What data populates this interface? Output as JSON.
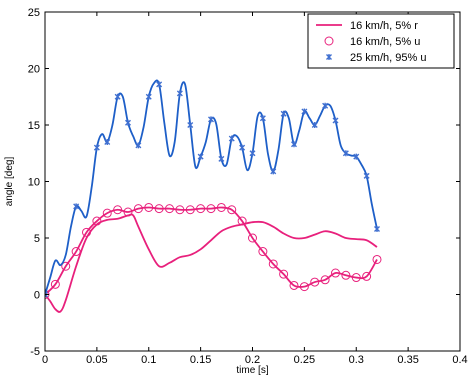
{
  "chart_data": {
    "type": "line",
    "xlabel": "time [s]",
    "ylabel": "angle [deg]",
    "xlim": [
      0,
      0.4
    ],
    "ylim": [
      -5,
      25
    ],
    "xticks": [
      0,
      0.05,
      0.1,
      0.15,
      0.2,
      0.25,
      0.3,
      0.35,
      0.4
    ],
    "xtick_labels": [
      "0",
      "0.05",
      "0.1",
      "0.15",
      "0.2",
      "0.25",
      "0.3",
      "0.35",
      "0.4"
    ],
    "yticks": [
      -5,
      0,
      5,
      10,
      15,
      20,
      25
    ],
    "ytick_labels": [
      "-5",
      "0",
      "5",
      "10",
      "15",
      "20",
      "25"
    ],
    "grid": false,
    "legend_position": "top-right",
    "series": [
      {
        "name": "16 km/h, 5% r",
        "color": "#e8207c",
        "marker": "none",
        "x": [
          0,
          0.005,
          0.01,
          0.015,
          0.02,
          0.03,
          0.04,
          0.05,
          0.06,
          0.07,
          0.08,
          0.085,
          0.09,
          0.1,
          0.11,
          0.12,
          0.13,
          0.14,
          0.15,
          0.16,
          0.17,
          0.18,
          0.19,
          0.2,
          0.21,
          0.22,
          0.23,
          0.24,
          0.25,
          0.26,
          0.27,
          0.28,
          0.29,
          0.3,
          0.31,
          0.32
        ],
        "y": [
          0,
          -0.6,
          -1.3,
          -1.5,
          -0.5,
          2.5,
          5.0,
          6.2,
          6.6,
          6.7,
          7.0,
          7.0,
          6.0,
          4.0,
          2.5,
          2.8,
          3.3,
          3.5,
          4.0,
          4.8,
          5.6,
          6.0,
          6.2,
          6.4,
          6.4,
          6.0,
          5.4,
          5.0,
          5.0,
          5.3,
          5.6,
          5.4,
          5.0,
          4.9,
          4.8,
          4.2
        ]
      },
      {
        "name": "16 km/h, 5% u",
        "color": "#e8207c",
        "marker": "circle",
        "x": [
          0,
          0.01,
          0.02,
          0.03,
          0.04,
          0.05,
          0.06,
          0.07,
          0.08,
          0.09,
          0.1,
          0.11,
          0.12,
          0.13,
          0.14,
          0.15,
          0.16,
          0.17,
          0.18,
          0.19,
          0.2,
          0.21,
          0.22,
          0.23,
          0.24,
          0.25,
          0.26,
          0.27,
          0.28,
          0.29,
          0.3,
          0.31,
          0.32
        ],
        "y": [
          0,
          0.9,
          2.5,
          3.8,
          5.5,
          6.5,
          7.2,
          7.5,
          7.3,
          7.6,
          7.7,
          7.6,
          7.6,
          7.5,
          7.5,
          7.6,
          7.6,
          7.7,
          7.5,
          6.5,
          5.0,
          3.8,
          2.7,
          1.8,
          0.8,
          0.7,
          1.1,
          1.3,
          1.9,
          1.7,
          1.5,
          1.6,
          3.1
        ]
      },
      {
        "name": "25 km/h, 95% u",
        "color": "#1e5fc8",
        "marker": "x",
        "x": [
          0,
          0.005,
          0.01,
          0.015,
          0.02,
          0.025,
          0.03,
          0.035,
          0.04,
          0.045,
          0.05,
          0.055,
          0.06,
          0.065,
          0.07,
          0.075,
          0.08,
          0.085,
          0.09,
          0.095,
          0.1,
          0.105,
          0.11,
          0.115,
          0.12,
          0.125,
          0.13,
          0.135,
          0.14,
          0.145,
          0.15,
          0.155,
          0.16,
          0.165,
          0.17,
          0.175,
          0.18,
          0.185,
          0.19,
          0.195,
          0.2,
          0.205,
          0.21,
          0.215,
          0.22,
          0.225,
          0.23,
          0.235,
          0.24,
          0.245,
          0.25,
          0.255,
          0.26,
          0.265,
          0.27,
          0.275,
          0.28,
          0.285,
          0.29,
          0.295,
          0.3,
          0.305,
          0.31,
          0.315,
          0.32
        ],
        "y": [
          0,
          1.5,
          3.0,
          2.6,
          3.5,
          6.0,
          7.8,
          7.4,
          6.9,
          9.5,
          13.0,
          14.2,
          13.5,
          15.0,
          17.5,
          17.5,
          15.2,
          14.0,
          13.2,
          14.8,
          17.5,
          18.7,
          18.6,
          15.2,
          12.3,
          13.5,
          17.8,
          18.6,
          15.0,
          11.3,
          12.2,
          13.5,
          15.5,
          15.1,
          12.0,
          11.5,
          13.8,
          14.0,
          13.0,
          11.0,
          12.5,
          15.8,
          15.6,
          12.4,
          10.9,
          12.8,
          16.0,
          15.6,
          13.3,
          14.5,
          16.2,
          15.6,
          15.0,
          15.8,
          16.7,
          16.7,
          15.4,
          13.2,
          12.5,
          12.3,
          12.2,
          11.5,
          10.5,
          8.0,
          5.8
        ],
        "marker_x": [
          0,
          0.03,
          0.05,
          0.06,
          0.07,
          0.08,
          0.09,
          0.1,
          0.11,
          0.13,
          0.14,
          0.15,
          0.16,
          0.17,
          0.18,
          0.19,
          0.2,
          0.21,
          0.22,
          0.23,
          0.24,
          0.25,
          0.26,
          0.27,
          0.28,
          0.29,
          0.3,
          0.31,
          0.32
        ]
      }
    ]
  }
}
